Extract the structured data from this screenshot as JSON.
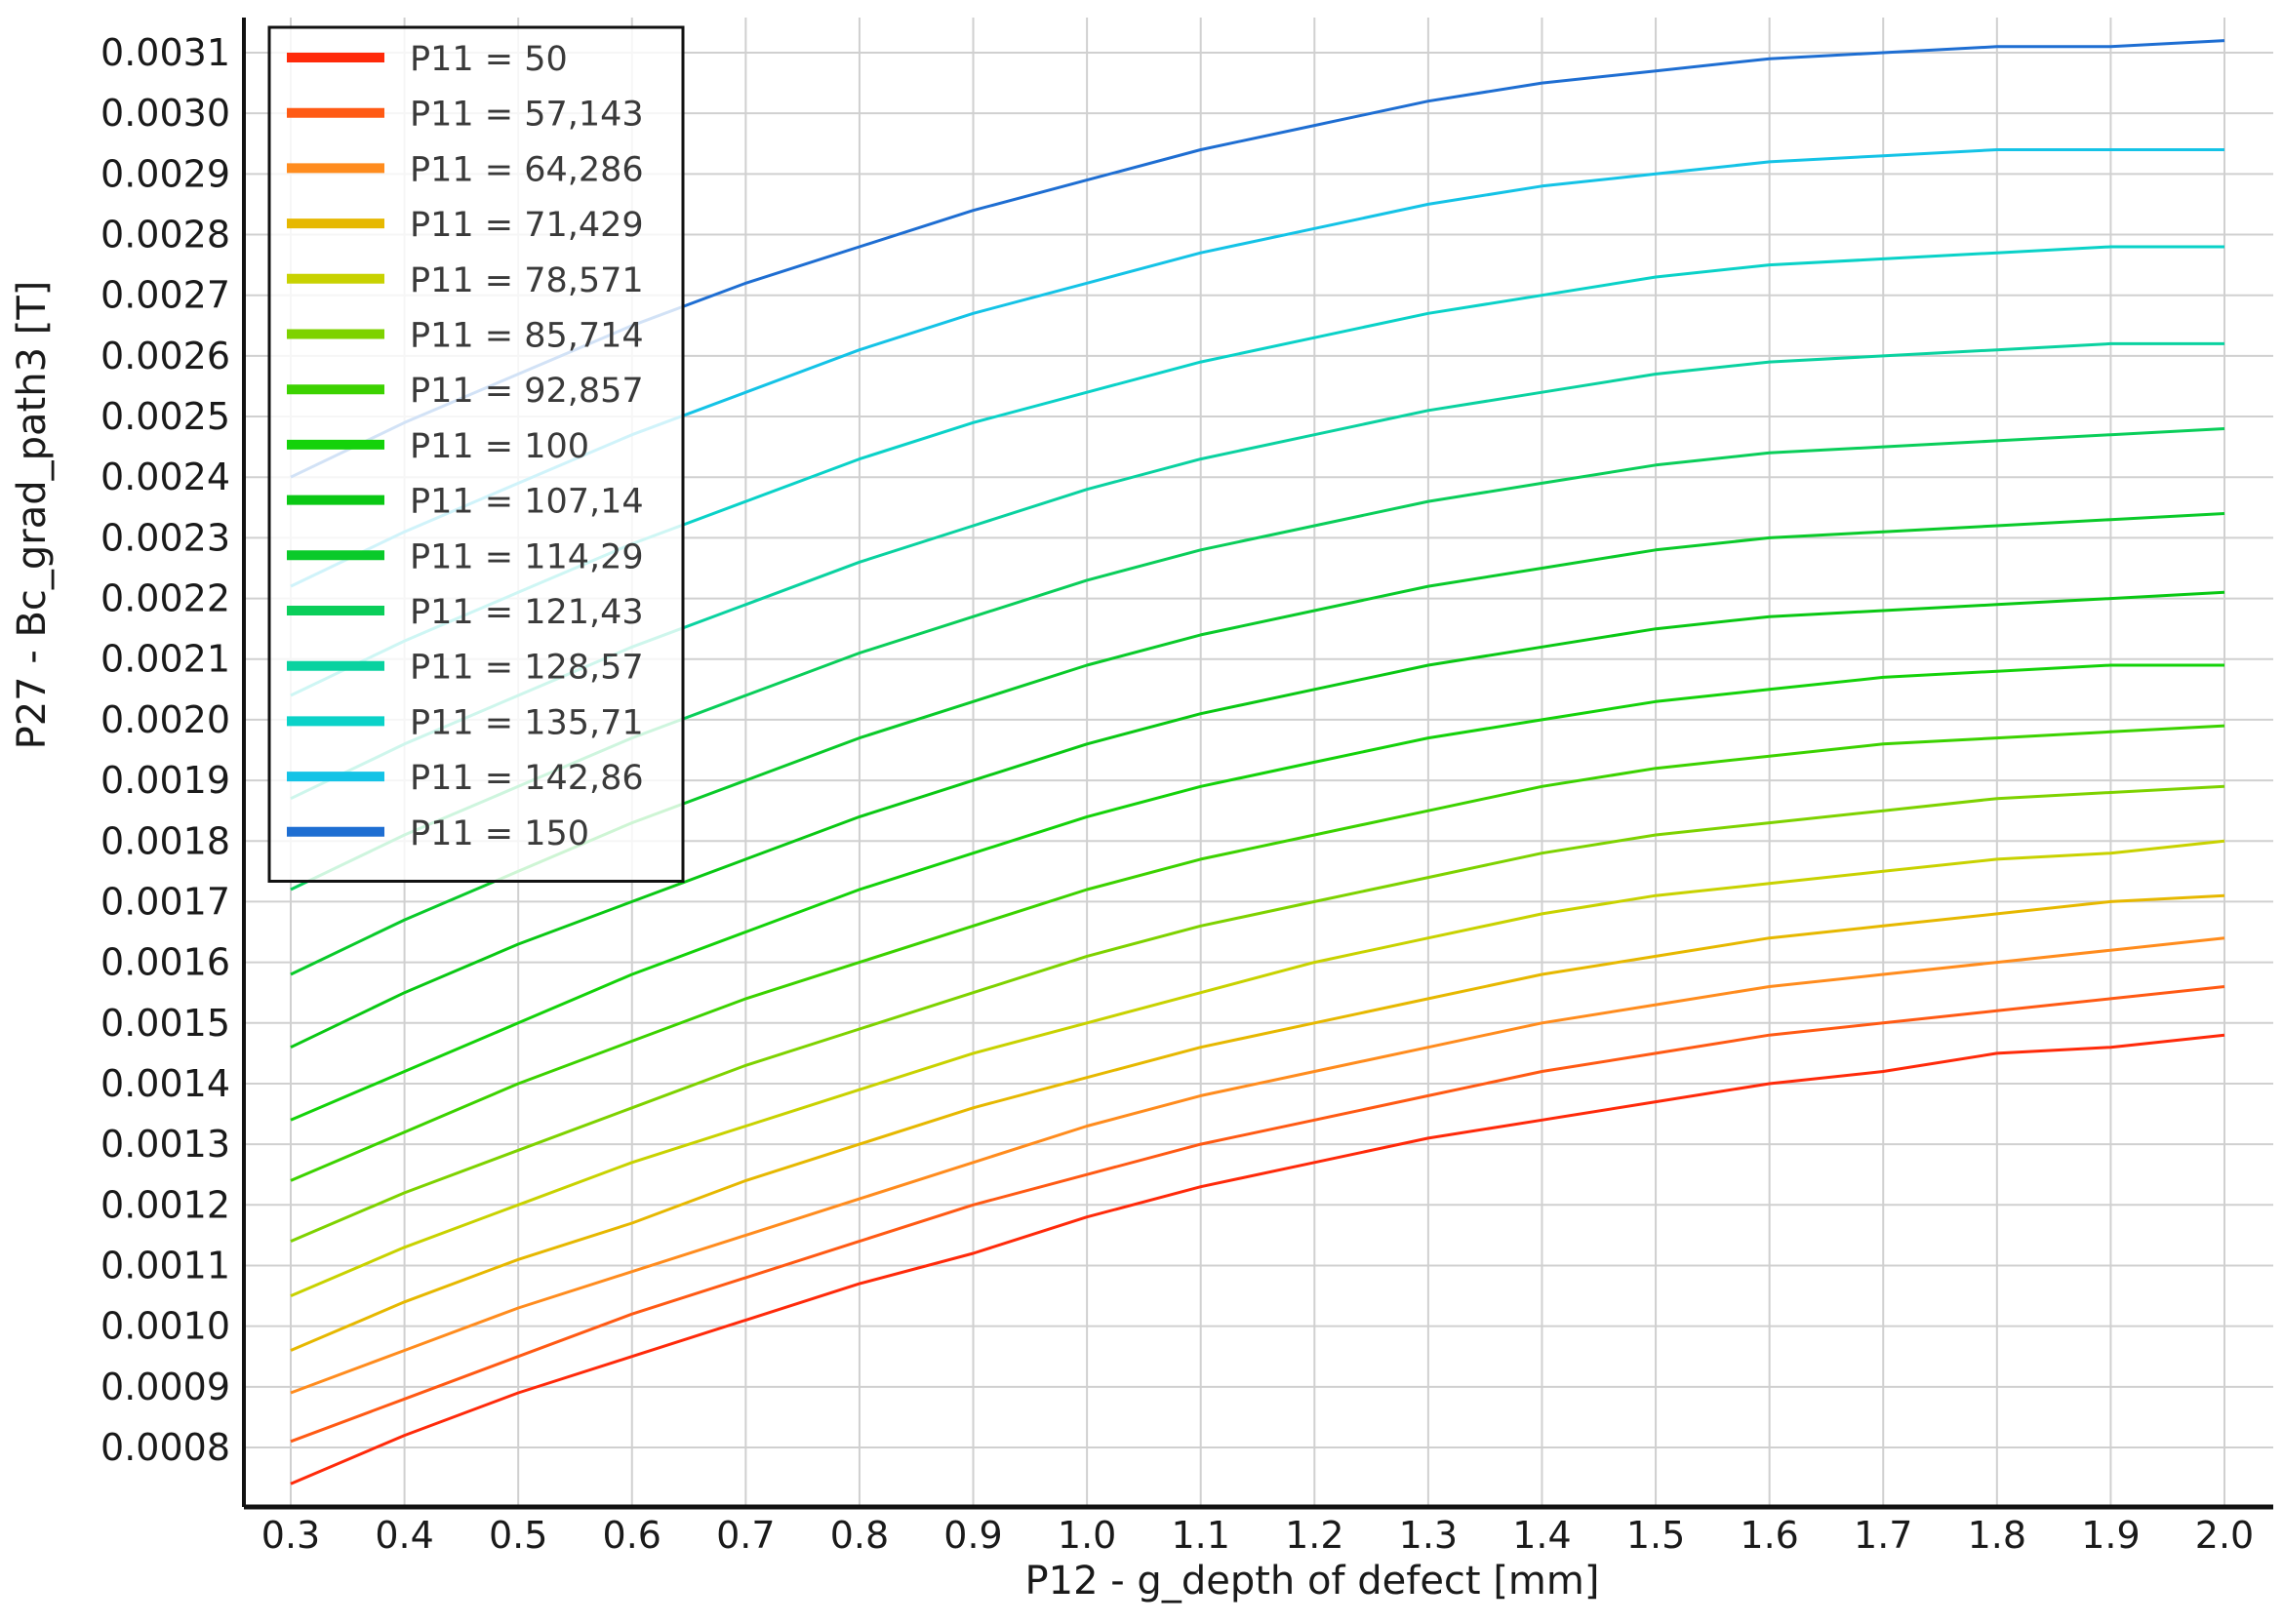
{
  "chart_data": {
    "type": "line",
    "title": "",
    "xlabel": "P12 - g_depth of defect [mm]",
    "ylabel": "P27 - Bc_grad_path3 [T]",
    "xlim": [
      0.3,
      2.0
    ],
    "ylim": [
      0.00072,
      0.00312
    ],
    "grid": true,
    "legend_position": "top-left",
    "x_ticks": [
      "0.3",
      "0.4",
      "0.5",
      "0.6",
      "0.7",
      "0.8",
      "0.9",
      "1.0",
      "1.1",
      "1.2",
      "1.3",
      "1.4",
      "1.5",
      "1.6",
      "1.7",
      "1.8",
      "1.9",
      "2.0"
    ],
    "y_ticks": [
      "0.0008",
      "0.0009",
      "0.0010",
      "0.0011",
      "0.0012",
      "0.0013",
      "0.0014",
      "0.0015",
      "0.0016",
      "0.0017",
      "0.0018",
      "0.0019",
      "0.0020",
      "0.0021",
      "0.0022",
      "0.0023",
      "0.0024",
      "0.0025",
      "0.0026",
      "0.0027",
      "0.0028",
      "0.0029",
      "0.0030",
      "0.0031"
    ],
    "x": [
      0.3,
      0.4,
      0.5,
      0.6,
      0.7,
      0.8,
      0.9,
      1.0,
      1.1,
      1.2,
      1.3,
      1.4,
      1.5,
      1.6,
      1.7,
      1.8,
      1.9,
      2.0
    ],
    "series": [
      {
        "name": "P11 = 50",
        "color": "#ff2a0a",
        "values": [
          0.00074,
          0.00082,
          0.00089,
          0.00095,
          0.00101,
          0.00107,
          0.00112,
          0.00118,
          0.00123,
          0.00127,
          0.00131,
          0.00134,
          0.00137,
          0.0014,
          0.00142,
          0.00145,
          0.00146,
          0.00148
        ]
      },
      {
        "name": "P11 = 57,143",
        "color": "#ff5a14",
        "values": [
          0.00081,
          0.00088,
          0.00095,
          0.00102,
          0.00108,
          0.00114,
          0.0012,
          0.00125,
          0.0013,
          0.00134,
          0.00138,
          0.00142,
          0.00145,
          0.00148,
          0.0015,
          0.00152,
          0.00154,
          0.00156
        ]
      },
      {
        "name": "P11 = 64,286",
        "color": "#ff8c1e",
        "values": [
          0.00089,
          0.00096,
          0.00103,
          0.00109,
          0.00115,
          0.00121,
          0.00127,
          0.00133,
          0.00138,
          0.00142,
          0.00146,
          0.0015,
          0.00153,
          0.00156,
          0.00158,
          0.0016,
          0.00162,
          0.00164
        ]
      },
      {
        "name": "P11 = 71,429",
        "color": "#e6b800",
        "values": [
          0.00096,
          0.00104,
          0.00111,
          0.00117,
          0.00124,
          0.0013,
          0.00136,
          0.00141,
          0.00146,
          0.0015,
          0.00154,
          0.00158,
          0.00161,
          0.00164,
          0.00166,
          0.00168,
          0.0017,
          0.00171
        ]
      },
      {
        "name": "P11 = 78,571",
        "color": "#c8d200",
        "values": [
          0.00105,
          0.00113,
          0.0012,
          0.00127,
          0.00133,
          0.00139,
          0.00145,
          0.0015,
          0.00155,
          0.0016,
          0.00164,
          0.00168,
          0.00171,
          0.00173,
          0.00175,
          0.00177,
          0.00178,
          0.0018
        ]
      },
      {
        "name": "P11 = 85,714",
        "color": "#7ed200",
        "values": [
          0.00114,
          0.00122,
          0.00129,
          0.00136,
          0.00143,
          0.00149,
          0.00155,
          0.00161,
          0.00166,
          0.0017,
          0.00174,
          0.00178,
          0.00181,
          0.00183,
          0.00185,
          0.00187,
          0.00188,
          0.00189
        ]
      },
      {
        "name": "P11 = 92,857",
        "color": "#3cd200",
        "values": [
          0.00124,
          0.00132,
          0.0014,
          0.00147,
          0.00154,
          0.0016,
          0.00166,
          0.00172,
          0.00177,
          0.00181,
          0.00185,
          0.00189,
          0.00192,
          0.00194,
          0.00196,
          0.00197,
          0.00198,
          0.00199
        ]
      },
      {
        "name": "P11 = 100",
        "color": "#14d20a",
        "values": [
          0.00134,
          0.00142,
          0.0015,
          0.00158,
          0.00165,
          0.00172,
          0.00178,
          0.00184,
          0.00189,
          0.00193,
          0.00197,
          0.002,
          0.00203,
          0.00205,
          0.00207,
          0.00208,
          0.00209,
          0.00209
        ]
      },
      {
        "name": "P11 = 107,14",
        "color": "#0ac814",
        "values": [
          0.00146,
          0.00155,
          0.00163,
          0.0017,
          0.00177,
          0.00184,
          0.0019,
          0.00196,
          0.00201,
          0.00205,
          0.00209,
          0.00212,
          0.00215,
          0.00217,
          0.00218,
          0.00219,
          0.0022,
          0.00221
        ]
      },
      {
        "name": "P11 = 114,29",
        "color": "#0aca2a",
        "values": [
          0.00158,
          0.00167,
          0.00175,
          0.00183,
          0.0019,
          0.00197,
          0.00203,
          0.00209,
          0.00214,
          0.00218,
          0.00222,
          0.00225,
          0.00228,
          0.0023,
          0.00231,
          0.00232,
          0.00233,
          0.00234
        ]
      },
      {
        "name": "P11 = 121,43",
        "color": "#0ace5a",
        "values": [
          0.00172,
          0.00181,
          0.00189,
          0.00197,
          0.00204,
          0.00211,
          0.00217,
          0.00223,
          0.00228,
          0.00232,
          0.00236,
          0.00239,
          0.00242,
          0.00244,
          0.00245,
          0.00246,
          0.00247,
          0.00248
        ]
      },
      {
        "name": "P11 = 128,57",
        "color": "#0ad2a0",
        "values": [
          0.00187,
          0.00196,
          0.00204,
          0.00212,
          0.00219,
          0.00226,
          0.00232,
          0.00238,
          0.00243,
          0.00247,
          0.00251,
          0.00254,
          0.00257,
          0.00259,
          0.0026,
          0.00261,
          0.00262,
          0.00262
        ]
      },
      {
        "name": "P11 = 135,71",
        "color": "#0ad2c8",
        "values": [
          0.00204,
          0.00213,
          0.00221,
          0.00229,
          0.00236,
          0.00243,
          0.00249,
          0.00254,
          0.00259,
          0.00263,
          0.00267,
          0.0027,
          0.00273,
          0.00275,
          0.00276,
          0.00277,
          0.00278,
          0.00278
        ]
      },
      {
        "name": "P11 = 142,86",
        "color": "#14c3e6",
        "values": [
          0.00222,
          0.00231,
          0.00239,
          0.00247,
          0.00254,
          0.00261,
          0.00267,
          0.00272,
          0.00277,
          0.00281,
          0.00285,
          0.00288,
          0.0029,
          0.00292,
          0.00293,
          0.00294,
          0.00294,
          0.00294
        ]
      },
      {
        "name": "P11 = 150",
        "color": "#1e6ed2",
        "values": [
          0.0024,
          0.00249,
          0.00257,
          0.00265,
          0.00272,
          0.00278,
          0.00284,
          0.00289,
          0.00294,
          0.00298,
          0.00302,
          0.00305,
          0.00307,
          0.00309,
          0.0031,
          0.00311,
          0.00311,
          0.00312
        ]
      }
    ]
  }
}
